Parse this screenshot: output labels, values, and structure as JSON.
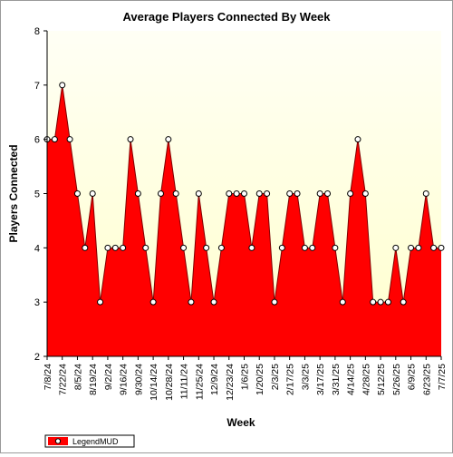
{
  "chart_data": {
    "type": "area",
    "title": "Average Players Connected By Week",
    "xlabel": "Week",
    "ylabel": "Players Connected",
    "ylim": [
      2,
      8
    ],
    "yticks": [
      "2",
      "3",
      "4",
      "5",
      "6",
      "7",
      "8"
    ],
    "grid": false,
    "legend_position": "bottom-left",
    "x_tick_labels": [
      "7/8/24",
      "7/22/24",
      "8/5/24",
      "8/19/24",
      "9/2/24",
      "9/16/24",
      "9/30/24",
      "10/14/24",
      "10/28/24",
      "11/11/24",
      "11/25/24",
      "12/9/24",
      "12/23/24",
      "1/6/25",
      "1/20/25",
      "2/3/25",
      "2/17/25",
      "3/3/25",
      "3/17/25",
      "3/31/25",
      "4/14/25",
      "4/28/25",
      "5/12/25",
      "5/26/25",
      "6/9/25",
      "6/23/25",
      "7/7/25"
    ],
    "series": [
      {
        "name": "LegendMUD",
        "color": "#ff0000",
        "values": [
          6,
          6,
          7,
          6,
          5,
          4,
          5,
          3,
          4,
          4,
          4,
          6,
          5,
          4,
          3,
          5,
          6,
          5,
          4,
          3,
          5,
          4,
          3,
          4,
          5,
          5,
          5,
          4,
          5,
          5,
          3,
          4,
          5,
          5,
          4,
          4,
          5,
          5,
          4,
          3,
          5,
          6,
          5,
          3,
          3,
          3,
          4,
          3,
          4,
          4,
          5,
          4,
          4
        ]
      }
    ]
  },
  "colors": {
    "plot_background_top": "#fffff5",
    "plot_background_bottom": "#ffffcc",
    "area_fill": "#ff0000",
    "area_line": "#800000",
    "marker_fill": "#ffffff"
  }
}
